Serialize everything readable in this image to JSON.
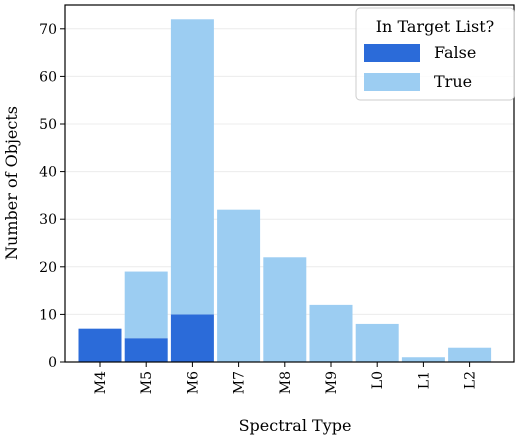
{
  "chart_data": {
    "type": "bar",
    "stacked": true,
    "categories": [
      "M4",
      "M5",
      "M6",
      "M7",
      "M8",
      "M9",
      "L0",
      "L1",
      "L2"
    ],
    "series": [
      {
        "name": "False",
        "color": "#2b6bd9",
        "values": [
          7,
          5,
          10,
          0,
          0,
          0,
          0,
          0,
          0
        ]
      },
      {
        "name": "True",
        "color": "#9ccdf2",
        "values": [
          0,
          14,
          62,
          32,
          22,
          12,
          8,
          1,
          3
        ]
      }
    ],
    "xlabel": "Spectral Type",
    "ylabel": "Number of Objects",
    "ylim": [
      0,
      75
    ],
    "yticks": [
      0,
      10,
      20,
      30,
      40,
      50,
      60,
      70
    ],
    "grid": "horizontal",
    "legend": {
      "title": "In Target List?",
      "position": "top-right"
    }
  }
}
